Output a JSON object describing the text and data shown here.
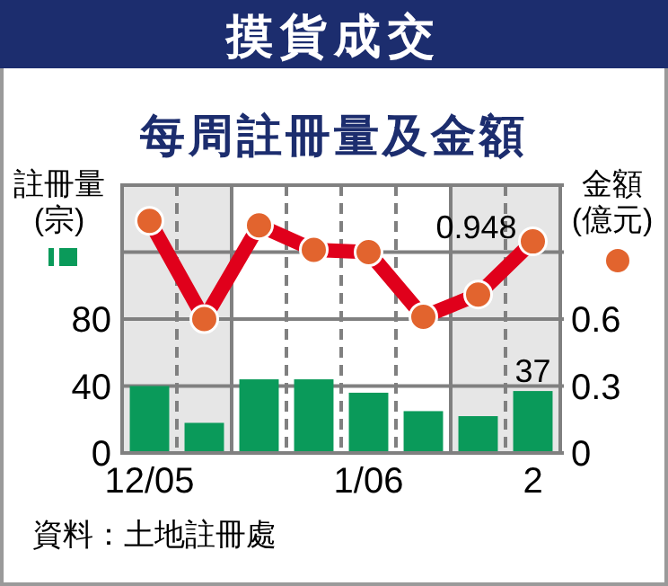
{
  "chart_data": {
    "type": "bar",
    "title": "摸貨成交",
    "subtitle": "每周註冊量及金額",
    "ylabel": "註冊量\n(宗)",
    "y2label": "金額\n(億元)",
    "annotations": [
      "資料：土地註冊處"
    ],
    "categories": [
      "12/05",
      null,
      null,
      null,
      "1/06",
      null,
      null,
      "2"
    ],
    "ylim": [
      0,
      160
    ],
    "yticks": [
      0,
      40,
      80,
      {
        "value": 120,
        "label": null
      },
      {
        "value": 160,
        "label": null
      }
    ],
    "y2lim": [
      0,
      1.2
    ],
    "y2ticks": [
      0,
      0.3,
      0.6,
      {
        "value": 0.9,
        "label": null
      },
      {
        "value": 1.2,
        "label": null
      }
    ],
    "grid": "y",
    "series": [
      {
        "type": "bar",
        "color": "#0a9a5a",
        "values": [
          40,
          18,
          44,
          44,
          36,
          25,
          22,
          37
        ],
        "value_labels": [
          null,
          null,
          null,
          null,
          null,
          null,
          null,
          "37"
        ]
      },
      {
        "type": "line",
        "axis": "y2",
        "color": "#e0001b",
        "marker": "circle",
        "line_style": "solid",
        "values": [
          1.04,
          0.6,
          1.02,
          0.91,
          0.9,
          0.61,
          0.71,
          0.948
        ],
        "value_labels": [
          null,
          null,
          null,
          null,
          null,
          null,
          null,
          "0.948"
        ]
      }
    ]
  }
}
